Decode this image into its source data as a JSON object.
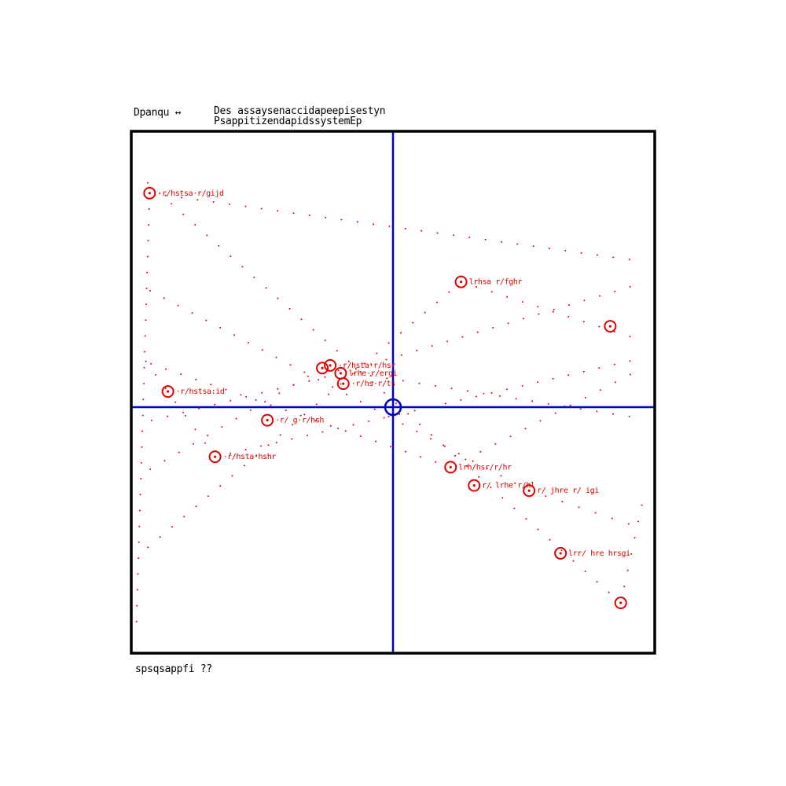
{
  "header": {
    "left": "Dpanqu ↔",
    "line1": "Des assaysenaccidapeepisestyn",
    "line2": "PsappitizendapidssystemEp"
  },
  "footer": {
    "text": "spsqsappfi ??"
  },
  "colors": {
    "frame": "#000000",
    "axes": "#0000cc",
    "points": "#e00000",
    "background": "#ffffff"
  },
  "chart_data": {
    "type": "scatter",
    "title": "",
    "xlabel": "",
    "ylabel": "",
    "xlim": [
      -1,
      1
    ],
    "ylim": [
      -1,
      1
    ],
    "grid": false,
    "origin_marker": true,
    "series": [
      {
        "points": [
          {
            "x": -0.93,
            "y": 0.82,
            "label": "·r/hstsa·r/gijd"
          },
          {
            "x": -0.86,
            "y": 0.06,
            "label": "·r/hstsa:id"
          },
          {
            "x": -0.68,
            "y": -0.19,
            "label": "·r/hsta·hshr"
          },
          {
            "x": -0.48,
            "y": -0.05,
            "label": "·r/ g·r/hsh"
          },
          {
            "x": -0.27,
            "y": 0.15,
            "label": ""
          },
          {
            "x": -0.24,
            "y": 0.16,
            "label": "·r/hsta·r/hsr"
          },
          {
            "x": -0.2,
            "y": 0.13,
            "label": "lrhe·r/ergi"
          },
          {
            "x": -0.19,
            "y": 0.09,
            "label": "·r/hs·r/ts"
          },
          {
            "x": 0.26,
            "y": 0.48,
            "label": "lrhsa r/fghr"
          },
          {
            "x": 0.83,
            "y": 0.31,
            "label": ""
          },
          {
            "x": 0.22,
            "y": -0.23,
            "label": "lrh/hsr/r/hr"
          },
          {
            "x": 0.31,
            "y": -0.3,
            "label": "r/ lrhe r/hl"
          },
          {
            "x": 0.52,
            "y": -0.32,
            "label": "r/ jhre r/ igi"
          },
          {
            "x": 0.64,
            "y": -0.56,
            "label": "lrr/ hre hrsgi"
          },
          {
            "x": 0.87,
            "y": -0.75,
            "label": ""
          }
        ]
      }
    ]
  }
}
